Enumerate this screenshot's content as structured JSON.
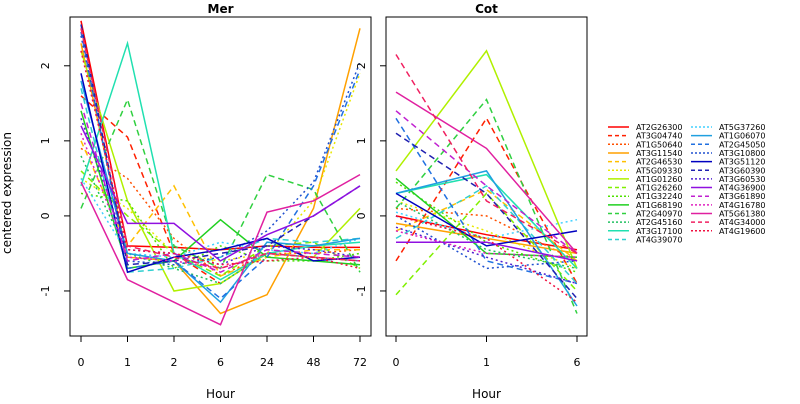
{
  "chart_data": {
    "type": "line",
    "ylabel": "centered expression",
    "yticks": [
      "-1",
      "0",
      "1",
      "2"
    ],
    "yticks_values": [
      -1,
      0,
      1,
      2
    ],
    "panels": [
      {
        "title": "Mer",
        "xlabel": "Hour",
        "categories": [
          "0",
          "1",
          "2",
          "6",
          "24",
          "48",
          "72"
        ],
        "ylim": [
          -1.6,
          2.65
        ]
      },
      {
        "title": "Cot",
        "xlabel": "Hour",
        "categories": [
          "0",
          "1",
          "6"
        ],
        "ylim": [
          -1.6,
          2.65
        ]
      }
    ],
    "series": [
      {
        "name": "AT2G26300",
        "color": "#FF0000",
        "dash": "solid",
        "mer": [
          2.6,
          -0.4,
          -0.42,
          -0.45,
          -0.4,
          -0.42,
          -0.42
        ],
        "cot": [
          0.0,
          -0.25,
          -0.45
        ]
      },
      {
        "name": "AT3G04740",
        "color": "#FF2000",
        "dash": "dashed",
        "mer": [
          1.6,
          1.05,
          -0.5,
          -0.9,
          -0.5,
          -0.55,
          -0.6
        ],
        "cot": [
          -0.6,
          1.3,
          -0.9
        ]
      },
      {
        "name": "AT1G50640",
        "color": "#FF5000",
        "dash": "dotted",
        "mer": [
          0.9,
          0.5,
          -0.3,
          -0.8,
          -0.5,
          -0.5,
          -0.45
        ],
        "cot": [
          0.1,
          0.0,
          -0.6
        ]
      },
      {
        "name": "AT3G11540",
        "color": "#FFA000",
        "dash": "solid",
        "mer": [
          2.3,
          -0.55,
          -0.6,
          -1.3,
          -1.05,
          0.1,
          2.5
        ],
        "cot": [
          -0.1,
          -0.3,
          -0.5
        ]
      },
      {
        "name": "AT2G46530",
        "color": "#FFC000",
        "dash": "dashed",
        "mer": [
          1.0,
          -0.4,
          0.4,
          -0.8,
          -0.55,
          -0.45,
          -0.45
        ],
        "cot": [
          -0.2,
          0.35,
          -0.6
        ]
      },
      {
        "name": "AT5G09330",
        "color": "#E8E800",
        "dash": "dotted",
        "mer": [
          0.5,
          0.1,
          -0.5,
          -0.6,
          -0.5,
          0.2,
          1.9
        ],
        "cot": [
          0.2,
          -0.2,
          -0.7
        ]
      },
      {
        "name": "AT1G01260",
        "color": "#B0F000",
        "dash": "solid",
        "mer": [
          2.2,
          0.2,
          -1.0,
          -0.9,
          -0.5,
          -0.55,
          0.1
        ],
        "cot": [
          0.6,
          2.2,
          -0.7
        ]
      },
      {
        "name": "AT1G26260",
        "color": "#80F000",
        "dash": "dashed",
        "mer": [
          0.6,
          0.0,
          -0.5,
          -0.8,
          -0.4,
          -0.35,
          -0.7
        ],
        "cot": [
          -1.05,
          0.3,
          -1.0
        ]
      },
      {
        "name": "AT1G32240",
        "color": "#50E000",
        "dash": "dotted",
        "mer": [
          0.3,
          0.2,
          -0.7,
          -0.4,
          -0.6,
          -0.6,
          -0.5
        ],
        "cot": [
          0.45,
          -0.35,
          -0.75
        ]
      },
      {
        "name": "AT1G68190",
        "color": "#20D020",
        "dash": "solid",
        "mer": [
          1.4,
          -0.7,
          -0.6,
          -0.05,
          -0.55,
          -0.6,
          -0.65
        ],
        "cot": [
          0.5,
          -0.5,
          -0.55
        ]
      },
      {
        "name": "AT2G40970",
        "color": "#30D040",
        "dash": "dashed",
        "mer": [
          0.1,
          1.55,
          -0.4,
          -0.7,
          0.55,
          0.35,
          -0.75
        ],
        "cot": [
          0.1,
          1.55,
          -1.3
        ]
      },
      {
        "name": "AT2G45160",
        "color": "#20C060",
        "dash": "dotted",
        "mer": [
          0.8,
          -0.5,
          -0.7,
          -0.9,
          -0.5,
          -0.55,
          -0.6
        ],
        "cot": [
          0.2,
          -0.45,
          -0.7
        ]
      },
      {
        "name": "AT3G17100",
        "color": "#20E0B0",
        "dash": "solid",
        "mer": [
          0.4,
          2.3,
          -0.5,
          -0.85,
          -0.5,
          -0.4,
          -0.35
        ],
        "cot": [
          0.3,
          0.55,
          -0.7
        ]
      },
      {
        "name": "AT4G39070",
        "color": "#30D0D0",
        "dash": "dashed",
        "mer": [
          1.7,
          -0.75,
          -0.7,
          -0.55,
          -0.3,
          -0.35,
          -0.3
        ],
        "cot": [
          -0.3,
          0.4,
          -0.9
        ]
      },
      {
        "name": "AT5G37260",
        "color": "#40D0FF",
        "dash": "dotted",
        "mer": [
          0.5,
          -0.5,
          -0.55,
          -0.35,
          -0.45,
          -0.5,
          -0.3
        ],
        "cot": [
          0.05,
          -0.3,
          -0.05
        ]
      },
      {
        "name": "AT1G06070",
        "color": "#20A0E0",
        "dash": "solid",
        "mer": [
          1.8,
          -0.5,
          -0.6,
          -1.15,
          -0.35,
          -0.4,
          -0.3
        ],
        "cot": [
          0.3,
          0.6,
          -1.2
        ]
      },
      {
        "name": "AT2G45050",
        "color": "#2070E0",
        "dash": "dashed",
        "mer": [
          2.45,
          -0.7,
          -0.6,
          -1.1,
          -0.55,
          0.4,
          1.95
        ],
        "cot": [
          1.3,
          -0.6,
          -0.9
        ]
      },
      {
        "name": "AT3G10800",
        "color": "#2050D0",
        "dash": "dotted",
        "mer": [
          2.4,
          -0.6,
          -0.65,
          -0.55,
          -0.2,
          0.45,
          2.05
        ],
        "cot": [
          0.0,
          -0.7,
          -0.6
        ]
      },
      {
        "name": "AT3G51120",
        "color": "#0000C0",
        "dash": "solid",
        "mer": [
          1.9,
          -0.75,
          -0.55,
          -0.45,
          -0.3,
          -0.6,
          -0.55
        ],
        "cot": [
          0.3,
          -0.4,
          -0.2
        ]
      },
      {
        "name": "AT3G60390",
        "color": "#2020B0",
        "dash": "dashed",
        "mer": [
          2.55,
          -0.65,
          -0.6,
          -0.5,
          -0.4,
          0.0,
          0.4
        ],
        "cot": [
          1.1,
          0.3,
          -1.1
        ]
      },
      {
        "name": "AT3G60530",
        "color": "#5020D0",
        "dash": "dotted",
        "mer": [
          1.3,
          -0.45,
          -0.5,
          -0.65,
          -0.4,
          -0.45,
          -0.55
        ],
        "cot": [
          -0.15,
          -0.55,
          -0.9
        ]
      },
      {
        "name": "AT4G36900",
        "color": "#9010E0",
        "dash": "solid",
        "mer": [
          1.2,
          -0.1,
          -0.1,
          -0.6,
          -0.25,
          0.0,
          0.4
        ],
        "cot": [
          -0.35,
          -0.35,
          -0.6
        ]
      },
      {
        "name": "AT3G61890",
        "color": "#C020D0",
        "dash": "dashed",
        "mer": [
          1.5,
          -0.6,
          -0.5,
          -0.75,
          -0.45,
          -0.5,
          -0.55
        ],
        "cot": [
          1.4,
          0.4,
          -0.5
        ]
      },
      {
        "name": "AT4G16780",
        "color": "#E020C0",
        "dash": "dotted",
        "mer": [
          1.1,
          -0.55,
          -0.6,
          -0.7,
          -0.5,
          -0.55,
          -0.6
        ],
        "cot": [
          -0.2,
          -0.5,
          -0.55
        ]
      },
      {
        "name": "AT5G61380",
        "color": "#E020A0",
        "dash": "solid",
        "mer": [
          0.45,
          -0.85,
          -1.15,
          -1.45,
          0.05,
          0.2,
          0.55
        ],
        "cot": [
          1.65,
          0.9,
          -0.5
        ]
      },
      {
        "name": "AT4G34000",
        "color": "#F02060",
        "dash": "dashed",
        "mer": [
          2.5,
          -0.4,
          -0.55,
          -0.7,
          -0.5,
          -0.55,
          -0.6
        ],
        "cot": [
          2.15,
          0.2,
          -0.5
        ]
      },
      {
        "name": "AT4G19600",
        "color": "#F01040",
        "dash": "dotted",
        "mer": [
          2.2,
          -0.45,
          -0.5,
          -0.65,
          -0.6,
          -0.55,
          -0.7
        ],
        "cot": [
          0.0,
          -0.3,
          -1.15
        ]
      }
    ]
  }
}
